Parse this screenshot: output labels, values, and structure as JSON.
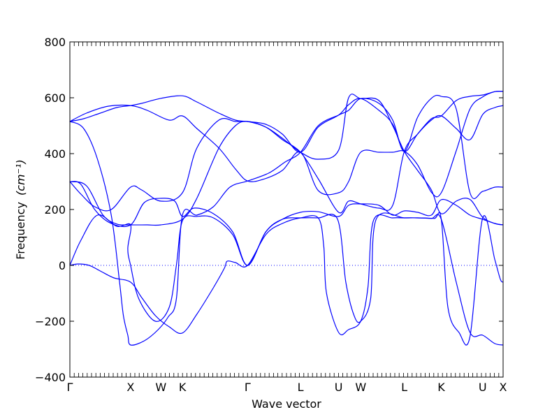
{
  "chart_data": {
    "type": "line",
    "xlabel": "Wave vector",
    "ylabel": "Frequency",
    "ylabel_unit": "(cm⁻¹)",
    "ylim": [
      -400,
      800
    ],
    "yticks": [
      -400,
      -200,
      0,
      200,
      400,
      600,
      800
    ],
    "ytick_labels": [
      "−400",
      "−200",
      "0",
      "200",
      "400",
      "600",
      "800"
    ],
    "grid": false,
    "zero_line": {
      "y": 0,
      "style": "dotted",
      "color": "#0000ff"
    },
    "line_color": "#0000ff",
    "xlim": [
      0,
      7.85
    ],
    "high_symmetry_points": [
      {
        "label": "Γ",
        "x": 0.0
      },
      {
        "label": "X",
        "x": 1.1
      },
      {
        "label": "W",
        "x": 1.65
      },
      {
        "label": "K",
        "x": 2.04
      },
      {
        "label": "Γ",
        "x": 3.22
      },
      {
        "label": "L",
        "x": 4.18
      },
      {
        "label": "U",
        "x": 4.87
      },
      {
        "label": "W",
        "x": 5.27
      },
      {
        "label": "L",
        "x": 6.06
      },
      {
        "label": "K",
        "x": 6.73
      },
      {
        "label": "U",
        "x": 7.48
      },
      {
        "label": "X",
        "x": 7.85
      }
    ],
    "series": [
      {
        "points": [
          [
            0,
            515
          ],
          [
            0.25,
            525
          ],
          [
            0.55,
            545
          ],
          [
            0.85,
            565
          ],
          [
            1.1,
            572
          ],
          [
            1.3,
            580
          ],
          [
            1.65,
            598
          ],
          [
            2.04,
            607
          ],
          [
            2.3,
            585
          ],
          [
            2.7,
            545
          ],
          [
            3.0,
            520
          ],
          [
            3.22,
            515
          ],
          [
            3.55,
            505
          ],
          [
            3.85,
            470
          ],
          [
            4.18,
            405
          ],
          [
            4.5,
            495
          ],
          [
            4.87,
            538
          ],
          [
            5.05,
            575
          ],
          [
            5.27,
            597
          ],
          [
            5.6,
            555
          ],
          [
            5.85,
            505
          ],
          [
            6.06,
            408
          ],
          [
            6.3,
            470
          ],
          [
            6.55,
            520
          ],
          [
            6.73,
            535
          ],
          [
            7.0,
            490
          ],
          [
            7.25,
            450
          ],
          [
            7.48,
            540
          ],
          [
            7.7,
            565
          ],
          [
            7.85,
            572
          ]
        ]
      },
      {
        "points": [
          [
            0,
            515
          ],
          [
            0.3,
            545
          ],
          [
            0.7,
            570
          ],
          [
            1.1,
            572
          ],
          [
            1.4,
            555
          ],
          [
            1.8,
            520
          ],
          [
            2.04,
            535
          ],
          [
            2.3,
            490
          ],
          [
            2.7,
            420
          ],
          [
            3.0,
            345
          ],
          [
            3.22,
            302
          ],
          [
            3.5,
            308
          ],
          [
            3.85,
            340
          ],
          [
            4.18,
            405
          ],
          [
            4.5,
            268
          ],
          [
            4.87,
            260
          ],
          [
            5.05,
            300
          ],
          [
            5.27,
            405
          ],
          [
            5.6,
            405
          ],
          [
            5.85,
            405
          ],
          [
            6.06,
            408
          ],
          [
            6.3,
            360
          ],
          [
            6.55,
            262
          ],
          [
            6.73,
            260
          ],
          [
            7.0,
            410
          ],
          [
            7.25,
            560
          ],
          [
            7.48,
            603
          ],
          [
            7.7,
            622
          ],
          [
            7.85,
            623
          ]
        ]
      },
      {
        "points": [
          [
            0,
            515
          ],
          [
            0.25,
            490
          ],
          [
            0.5,
            380
          ],
          [
            0.75,
            180
          ],
          [
            0.9,
            -60
          ],
          [
            0.97,
            -180
          ],
          [
            1.05,
            -250
          ],
          [
            1.1,
            -285
          ],
          [
            1.35,
            -270
          ],
          [
            1.6,
            -230
          ],
          [
            1.78,
            -185
          ],
          [
            1.93,
            -120
          ],
          [
            2.04,
            180
          ],
          [
            2.3,
            180
          ],
          [
            2.6,
            210
          ],
          [
            2.9,
            280
          ],
          [
            3.22,
            302
          ],
          [
            3.6,
            330
          ],
          [
            3.9,
            370
          ],
          [
            4.18,
            405
          ],
          [
            4.5,
            500
          ],
          [
            4.87,
            538
          ],
          [
            5.05,
            555
          ],
          [
            5.27,
            597
          ],
          [
            5.6,
            580
          ],
          [
            5.85,
            520
          ],
          [
            6.06,
            408
          ],
          [
            6.3,
            530
          ],
          [
            6.55,
            598
          ],
          [
            6.73,
            605
          ],
          [
            7.0,
            560
          ],
          [
            7.25,
            260
          ],
          [
            7.48,
            265
          ],
          [
            7.7,
            280
          ],
          [
            7.85,
            280
          ]
        ]
      },
      {
        "points": [
          [
            0,
            300
          ],
          [
            0.3,
            285
          ],
          [
            0.6,
            180
          ],
          [
            0.85,
            148
          ],
          [
            1.1,
            145
          ],
          [
            1.4,
            145
          ],
          [
            1.65,
            145
          ],
          [
            2.04,
            165
          ],
          [
            2.3,
            240
          ],
          [
            2.7,
            420
          ],
          [
            3.0,
            500
          ],
          [
            3.22,
            515
          ],
          [
            3.55,
            495
          ],
          [
            3.85,
            455
          ],
          [
            4.18,
            405
          ],
          [
            4.5,
            380
          ],
          [
            4.87,
            412
          ],
          [
            5.05,
            600
          ],
          [
            5.27,
            597
          ],
          [
            5.6,
            590
          ],
          [
            5.85,
            500
          ],
          [
            6.06,
            408
          ],
          [
            6.3,
            340
          ],
          [
            6.55,
            270
          ],
          [
            6.73,
            185
          ],
          [
            7.0,
            230
          ],
          [
            7.25,
            236
          ],
          [
            7.48,
            172
          ],
          [
            7.7,
            150
          ],
          [
            7.85,
            145
          ]
        ]
      },
      {
        "points": [
          [
            0,
            300
          ],
          [
            0.2,
            255
          ],
          [
            0.45,
            210
          ],
          [
            0.75,
            200
          ],
          [
            1.1,
            280
          ],
          [
            1.3,
            270
          ],
          [
            1.65,
            230
          ],
          [
            2.04,
            260
          ],
          [
            2.3,
            420
          ],
          [
            2.7,
            520
          ],
          [
            3.0,
            515
          ],
          [
            3.22,
            515
          ],
          [
            3.55,
            495
          ],
          [
            3.85,
            450
          ],
          [
            4.18,
            405
          ],
          [
            4.5,
            310
          ],
          [
            4.87,
            190
          ],
          [
            5.05,
            230
          ],
          [
            5.27,
            220
          ],
          [
            5.6,
            205
          ],
          [
            5.85,
            215
          ],
          [
            6.06,
            408
          ],
          [
            6.3,
            470
          ],
          [
            6.55,
            525
          ],
          [
            6.73,
            535
          ],
          [
            7.0,
            590
          ],
          [
            7.25,
            605
          ],
          [
            7.48,
            610
          ],
          [
            7.7,
            622
          ],
          [
            7.85,
            623
          ]
        ]
      },
      {
        "points": [
          [
            0,
            300
          ],
          [
            0.2,
            290
          ],
          [
            0.45,
            200
          ],
          [
            0.75,
            150
          ],
          [
            1.1,
            145
          ],
          [
            1.35,
            225
          ],
          [
            1.65,
            240
          ],
          [
            1.9,
            230
          ],
          [
            2.04,
            175
          ],
          [
            2.25,
            205
          ],
          [
            2.6,
            185
          ],
          [
            2.95,
            120
          ],
          [
            3.22,
            0
          ],
          [
            3.55,
            120
          ],
          [
            3.85,
            165
          ],
          [
            4.18,
            190
          ],
          [
            4.5,
            192
          ],
          [
            4.87,
            175
          ],
          [
            5.05,
            215
          ],
          [
            5.27,
            220
          ],
          [
            5.6,
            215
          ],
          [
            5.85,
            180
          ],
          [
            6.06,
            195
          ],
          [
            6.3,
            190
          ],
          [
            6.55,
            180
          ],
          [
            6.73,
            235
          ],
          [
            7.0,
            215
          ],
          [
            7.25,
            180
          ],
          [
            7.48,
            165
          ],
          [
            7.7,
            150
          ],
          [
            7.85,
            145
          ]
        ]
      },
      {
        "points": [
          [
            0,
            0
          ],
          [
            0.15,
            5
          ],
          [
            0.35,
            0
          ],
          [
            0.55,
            -20
          ],
          [
            0.8,
            -45
          ],
          [
            1.1,
            -60
          ],
          [
            1.3,
            -115
          ],
          [
            1.55,
            -180
          ],
          [
            1.8,
            -220
          ],
          [
            2.04,
            -242
          ],
          [
            2.3,
            -175
          ],
          [
            2.6,
            -80
          ],
          [
            2.8,
            -10
          ],
          [
            2.85,
            15
          ],
          [
            3.0,
            10
          ],
          [
            3.22,
            0
          ],
          [
            3.55,
            110
          ],
          [
            3.85,
            150
          ],
          [
            4.18,
            170
          ],
          [
            4.5,
            170
          ],
          [
            4.6,
            70
          ],
          [
            4.65,
            -100
          ],
          [
            4.87,
            -240
          ],
          [
            5.05,
            -230
          ],
          [
            5.27,
            -200
          ],
          [
            5.4,
            -80
          ],
          [
            5.5,
            160
          ],
          [
            5.85,
            170
          ],
          [
            6.06,
            170
          ],
          [
            6.3,
            170
          ],
          [
            6.55,
            168
          ],
          [
            6.73,
            165
          ],
          [
            7.0,
            -60
          ],
          [
            7.25,
            -240
          ],
          [
            7.48,
            -250
          ],
          [
            7.7,
            -280
          ],
          [
            7.85,
            -285
          ]
        ]
      },
      {
        "points": [
          [
            0,
            0
          ],
          [
            0.2,
            90
          ],
          [
            0.5,
            180
          ],
          [
            0.85,
            140
          ],
          [
            1.1,
            145
          ],
          [
            1.05,
            60
          ],
          [
            1.1,
            0
          ],
          [
            1.25,
            -120
          ],
          [
            1.55,
            -200
          ],
          [
            1.8,
            -150
          ],
          [
            1.93,
            0
          ],
          [
            2.04,
            160
          ],
          [
            2.3,
            175
          ],
          [
            2.6,
            170
          ],
          [
            2.95,
            110
          ],
          [
            3.22,
            0
          ],
          [
            3.55,
            120
          ],
          [
            3.85,
            165
          ],
          [
            4.18,
            170
          ],
          [
            4.5,
            170
          ],
          [
            4.85,
            165
          ],
          [
            5.0,
            -60
          ],
          [
            5.15,
            -180
          ],
          [
            5.27,
            -200
          ],
          [
            5.45,
            -120
          ],
          [
            5.55,
            165
          ],
          [
            6.06,
            170
          ],
          [
            6.3,
            170
          ],
          [
            6.6,
            168
          ],
          [
            6.73,
            165
          ],
          [
            6.85,
            -150
          ],
          [
            7.05,
            -240
          ],
          [
            7.25,
            -255
          ],
          [
            7.48,
            170
          ],
          [
            7.7,
            20
          ],
          [
            7.8,
            -50
          ],
          [
            7.85,
            -60
          ]
        ]
      }
    ]
  }
}
